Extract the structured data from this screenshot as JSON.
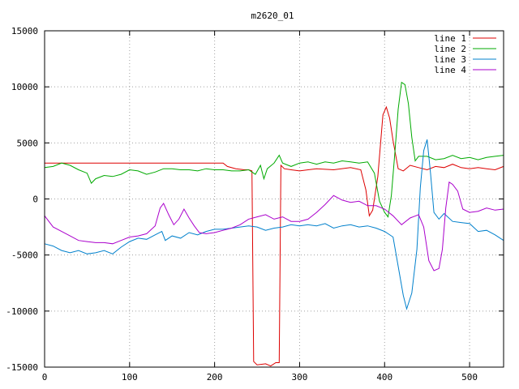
{
  "chart_data": {
    "type": "line",
    "title": "m2620_01",
    "xlabel": "",
    "ylabel": "",
    "xlim": [
      0,
      540
    ],
    "ylim": [
      -15000,
      15000
    ],
    "xticks": [
      0,
      100,
      200,
      300,
      400,
      500
    ],
    "yticks": [
      -15000,
      -10000,
      -5000,
      0,
      5000,
      10000,
      15000
    ],
    "grid": true,
    "legend_position": "top-right",
    "series": [
      {
        "name": "line 1",
        "color": "#dd0000",
        "points": [
          [
            0,
            3200
          ],
          [
            50,
            3200
          ],
          [
            100,
            3200
          ],
          [
            150,
            3200
          ],
          [
            200,
            3200
          ],
          [
            210,
            3200
          ],
          [
            215,
            2900
          ],
          [
            225,
            2700
          ],
          [
            235,
            2600
          ],
          [
            240,
            2600
          ],
          [
            244,
            2500
          ],
          [
            246,
            -14500
          ],
          [
            250,
            -14800
          ],
          [
            260,
            -14700
          ],
          [
            266,
            -14900
          ],
          [
            272,
            -14600
          ],
          [
            276,
            -14600
          ],
          [
            278,
            3000
          ],
          [
            282,
            2700
          ],
          [
            290,
            2600
          ],
          [
            300,
            2500
          ],
          [
            320,
            2700
          ],
          [
            340,
            2600
          ],
          [
            360,
            2800
          ],
          [
            372,
            2600
          ],
          [
            378,
            800
          ],
          [
            382,
            -1500
          ],
          [
            386,
            -1000
          ],
          [
            392,
            2000
          ],
          [
            398,
            7500
          ],
          [
            402,
            8200
          ],
          [
            406,
            7200
          ],
          [
            410,
            5200
          ],
          [
            416,
            2700
          ],
          [
            422,
            2500
          ],
          [
            430,
            3000
          ],
          [
            440,
            2800
          ],
          [
            450,
            2600
          ],
          [
            460,
            2900
          ],
          [
            470,
            2800
          ],
          [
            480,
            3100
          ],
          [
            490,
            2800
          ],
          [
            500,
            2700
          ],
          [
            510,
            2800
          ],
          [
            520,
            2700
          ],
          [
            530,
            2600
          ],
          [
            540,
            2900
          ]
        ]
      },
      {
        "name": "line 2",
        "color": "#00aa00",
        "points": [
          [
            0,
            2800
          ],
          [
            10,
            2900
          ],
          [
            20,
            3200
          ],
          [
            30,
            3000
          ],
          [
            40,
            2600
          ],
          [
            50,
            2300
          ],
          [
            55,
            1400
          ],
          [
            60,
            1800
          ],
          [
            70,
            2100
          ],
          [
            80,
            2000
          ],
          [
            90,
            2200
          ],
          [
            100,
            2600
          ],
          [
            110,
            2500
          ],
          [
            120,
            2200
          ],
          [
            130,
            2400
          ],
          [
            140,
            2700
          ],
          [
            150,
            2700
          ],
          [
            160,
            2600
          ],
          [
            170,
            2600
          ],
          [
            180,
            2500
          ],
          [
            190,
            2700
          ],
          [
            200,
            2600
          ],
          [
            210,
            2600
          ],
          [
            220,
            2500
          ],
          [
            230,
            2500
          ],
          [
            240,
            2600
          ],
          [
            248,
            2200
          ],
          [
            254,
            3000
          ],
          [
            258,
            1800
          ],
          [
            262,
            2700
          ],
          [
            270,
            3200
          ],
          [
            276,
            3900
          ],
          [
            280,
            3200
          ],
          [
            290,
            2900
          ],
          [
            300,
            3200
          ],
          [
            310,
            3300
          ],
          [
            320,
            3100
          ],
          [
            330,
            3300
          ],
          [
            340,
            3200
          ],
          [
            350,
            3400
          ],
          [
            360,
            3300
          ],
          [
            370,
            3200
          ],
          [
            380,
            3300
          ],
          [
            388,
            2300
          ],
          [
            394,
            -200
          ],
          [
            400,
            -1200
          ],
          [
            404,
            -1600
          ],
          [
            408,
            300
          ],
          [
            412,
            4000
          ],
          [
            416,
            8000
          ],
          [
            420,
            10400
          ],
          [
            424,
            10200
          ],
          [
            428,
            8500
          ],
          [
            432,
            5500
          ],
          [
            436,
            3400
          ],
          [
            440,
            3800
          ],
          [
            450,
            3800
          ],
          [
            460,
            3500
          ],
          [
            470,
            3600
          ],
          [
            480,
            3900
          ],
          [
            490,
            3600
          ],
          [
            500,
            3700
          ],
          [
            510,
            3500
          ],
          [
            520,
            3700
          ],
          [
            530,
            3800
          ],
          [
            540,
            3900
          ]
        ]
      },
      {
        "name": "line 3",
        "color": "#0080cc",
        "points": [
          [
            0,
            -4000
          ],
          [
            10,
            -4200
          ],
          [
            20,
            -4600
          ],
          [
            30,
            -4800
          ],
          [
            40,
            -4600
          ],
          [
            50,
            -4900
          ],
          [
            60,
            -4800
          ],
          [
            70,
            -4600
          ],
          [
            80,
            -4900
          ],
          [
            90,
            -4300
          ],
          [
            100,
            -3800
          ],
          [
            110,
            -3500
          ],
          [
            120,
            -3600
          ],
          [
            130,
            -3200
          ],
          [
            138,
            -2900
          ],
          [
            142,
            -3700
          ],
          [
            150,
            -3300
          ],
          [
            160,
            -3500
          ],
          [
            170,
            -3000
          ],
          [
            180,
            -3200
          ],
          [
            190,
            -2900
          ],
          [
            200,
            -2700
          ],
          [
            210,
            -2700
          ],
          [
            220,
            -2600
          ],
          [
            230,
            -2500
          ],
          [
            240,
            -2400
          ],
          [
            250,
            -2500
          ],
          [
            260,
            -2800
          ],
          [
            270,
            -2600
          ],
          [
            280,
            -2500
          ],
          [
            290,
            -2300
          ],
          [
            300,
            -2400
          ],
          [
            310,
            -2300
          ],
          [
            320,
            -2400
          ],
          [
            330,
            -2200
          ],
          [
            340,
            -2600
          ],
          [
            350,
            -2400
          ],
          [
            360,
            -2300
          ],
          [
            370,
            -2500
          ],
          [
            380,
            -2400
          ],
          [
            390,
            -2600
          ],
          [
            400,
            -2900
          ],
          [
            410,
            -3400
          ],
          [
            416,
            -6000
          ],
          [
            422,
            -8600
          ],
          [
            426,
            -9800
          ],
          [
            432,
            -8400
          ],
          [
            438,
            -4500
          ],
          [
            442,
            1000
          ],
          [
            446,
            4300
          ],
          [
            450,
            5300
          ],
          [
            454,
            2300
          ],
          [
            458,
            -1200
          ],
          [
            464,
            -1800
          ],
          [
            470,
            -1300
          ],
          [
            480,
            -2000
          ],
          [
            490,
            -2100
          ],
          [
            500,
            -2200
          ],
          [
            510,
            -2900
          ],
          [
            520,
            -2800
          ],
          [
            530,
            -3200
          ],
          [
            540,
            -3700
          ]
        ]
      },
      {
        "name": "line 4",
        "color": "#aa00cc",
        "points": [
          [
            0,
            -1500
          ],
          [
            10,
            -2500
          ],
          [
            20,
            -2900
          ],
          [
            30,
            -3300
          ],
          [
            40,
            -3700
          ],
          [
            50,
            -3800
          ],
          [
            60,
            -3900
          ],
          [
            70,
            -3900
          ],
          [
            80,
            -4000
          ],
          [
            90,
            -3700
          ],
          [
            100,
            -3400
          ],
          [
            110,
            -3300
          ],
          [
            120,
            -3100
          ],
          [
            130,
            -2400
          ],
          [
            136,
            -800
          ],
          [
            140,
            -400
          ],
          [
            146,
            -1400
          ],
          [
            152,
            -2300
          ],
          [
            158,
            -1800
          ],
          [
            164,
            -900
          ],
          [
            170,
            -1700
          ],
          [
            176,
            -2400
          ],
          [
            182,
            -3000
          ],
          [
            190,
            -3100
          ],
          [
            200,
            -3000
          ],
          [
            210,
            -2800
          ],
          [
            220,
            -2600
          ],
          [
            230,
            -2300
          ],
          [
            240,
            -1800
          ],
          [
            250,
            -1600
          ],
          [
            260,
            -1400
          ],
          [
            270,
            -1800
          ],
          [
            280,
            -1600
          ],
          [
            290,
            -2000
          ],
          [
            300,
            -2000
          ],
          [
            310,
            -1800
          ],
          [
            320,
            -1200
          ],
          [
            330,
            -500
          ],
          [
            340,
            300
          ],
          [
            350,
            -100
          ],
          [
            360,
            -300
          ],
          [
            370,
            -200
          ],
          [
            380,
            -600
          ],
          [
            390,
            -600
          ],
          [
            400,
            -900
          ],
          [
            410,
            -1500
          ],
          [
            420,
            -2300
          ],
          [
            430,
            -1700
          ],
          [
            440,
            -1400
          ],
          [
            446,
            -2500
          ],
          [
            452,
            -5500
          ],
          [
            458,
            -6400
          ],
          [
            464,
            -6200
          ],
          [
            468,
            -4500
          ],
          [
            472,
            -800
          ],
          [
            476,
            1500
          ],
          [
            480,
            1300
          ],
          [
            486,
            700
          ],
          [
            492,
            -900
          ],
          [
            500,
            -1200
          ],
          [
            510,
            -1100
          ],
          [
            520,
            -800
          ],
          [
            530,
            -1000
          ],
          [
            540,
            -900
          ]
        ]
      }
    ]
  }
}
